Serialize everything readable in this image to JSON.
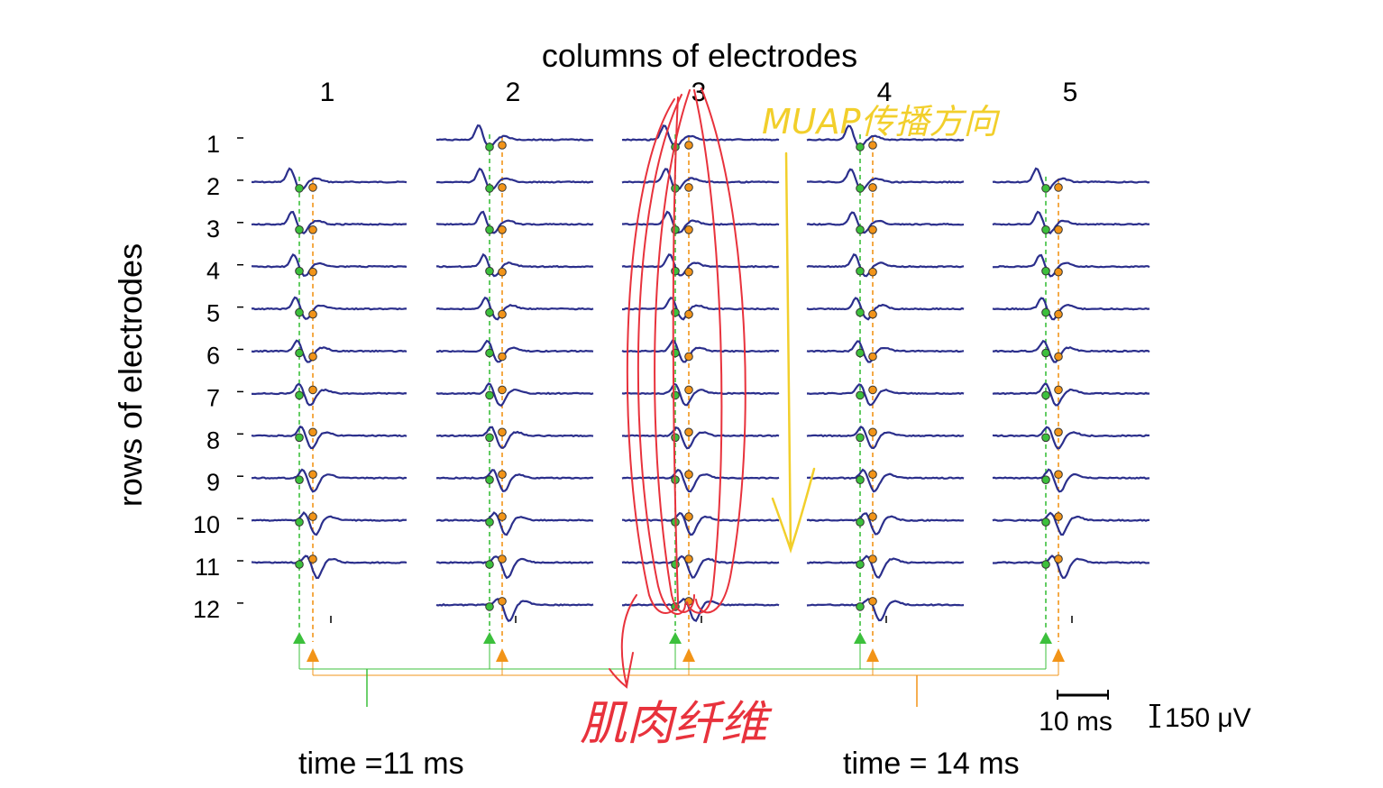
{
  "chart_data": {
    "type": "line",
    "title": "columns of electrodes",
    "ylabel": "rows of electrodes",
    "columns": [
      "1",
      "2",
      "3",
      "4",
      "5"
    ],
    "rows": [
      "1",
      "2",
      "3",
      "4",
      "5",
      "6",
      "7",
      "8",
      "9",
      "10",
      "11",
      "12"
    ],
    "missing_channels": [
      {
        "column": "1",
        "row": "1"
      },
      {
        "column": "1",
        "row": "12"
      },
      {
        "column": "5",
        "row": "1"
      },
      {
        "column": "5",
        "row": "12"
      }
    ],
    "time_markers": [
      {
        "label": "time =11 ms",
        "value_ms": 11
      },
      {
        "label": "time = 14 ms",
        "value_ms": 14
      }
    ],
    "scale_bars": {
      "time_label": "10 ms",
      "time_ms": 10,
      "amplitude_label": "150 μV",
      "amplitude_uV": 150
    },
    "annotations": [
      {
        "text": "MUAP传播方向",
        "meaning": "direction of MUAP propagation (handwritten, yellow)"
      },
      {
        "text": "肌肉纤维",
        "meaning": "muscle fibers (handwritten, red)"
      }
    ],
    "colors": {
      "signal": "#2b2f8c",
      "green_marker": "#3cc03c",
      "orange_marker": "#f29418",
      "annotation_yellow": "#f2cf2b",
      "annotation_red": "#e8323c"
    }
  }
}
